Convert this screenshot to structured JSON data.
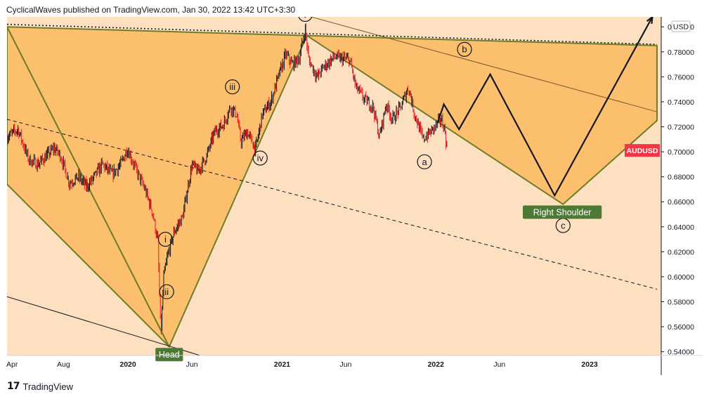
{
  "header": {
    "text": "CyclicalWaves published on TradingView.com, Jan 30, 2022 13:42 UTC+3:30"
  },
  "footer": {
    "logo": "tradingview-logo-icon",
    "brand": "TradingView"
  },
  "chart_data": {
    "type": "line",
    "title": "",
    "symbol": "AUDUSD",
    "currency": "USD",
    "colors": {
      "candle_up": "#131722",
      "candle_down": "#e51c23",
      "background_fill": "#fce0c0",
      "triangle_fill": "#fbbf6e",
      "triangle_edge": "#6f7d2a",
      "label_green": "#4c7a34",
      "symbol_badge": "#f23645"
    },
    "x_labels": [
      "Apr",
      "Aug",
      "2020",
      "Jun",
      "2021",
      "Jun",
      "2022",
      "Jun",
      "2023"
    ],
    "x_dates": [
      "2019-04-01",
      "2019-08-01",
      "2020-01-01",
      "2020-06-01",
      "2021-01-01",
      "2021-06-01",
      "2022-01-01",
      "2022-06-01",
      "2023-01-01"
    ],
    "y_ticks": [
      "0.80000",
      "0.78000",
      "0.76000",
      "0.74000",
      "0.72000",
      "0.70000",
      "0.68000",
      "0.66000",
      "0.64000",
      "0.62000",
      "0.60000",
      "0.58000",
      "0.56000",
      "0.54000"
    ],
    "ylim": [
      0.537,
      0.808
    ],
    "xlim": [
      "2019-03-20",
      "2023-06-20"
    ],
    "last_price_label": "AUDUSD",
    "price_series": [
      [
        "2019-03-20",
        0.712
      ],
      [
        "2019-04-15",
        0.718
      ],
      [
        "2019-05-10",
        0.694
      ],
      [
        "2019-06-01",
        0.69
      ],
      [
        "2019-06-20",
        0.696
      ],
      [
        "2019-07-10",
        0.703
      ],
      [
        "2019-07-25",
        0.697
      ],
      [
        "2019-08-15",
        0.675
      ],
      [
        "2019-09-05",
        0.68
      ],
      [
        "2019-09-25",
        0.672
      ],
      [
        "2019-10-15",
        0.681
      ],
      [
        "2019-11-01",
        0.69
      ],
      [
        "2019-11-25",
        0.682
      ],
      [
        "2019-12-15",
        0.69
      ],
      [
        "2019-12-31",
        0.702
      ],
      [
        "2020-01-20",
        0.686
      ],
      [
        "2020-02-10",
        0.67
      ],
      [
        "2020-02-28",
        0.652
      ],
      [
        "2020-03-12",
        0.628
      ],
      [
        "2020-03-19",
        0.552
      ],
      [
        "2020-03-26",
        0.6
      ],
      [
        "2020-04-05",
        0.618
      ],
      [
        "2020-04-20",
        0.636
      ],
      [
        "2020-05-10",
        0.648
      ],
      [
        "2020-06-01",
        0.69
      ],
      [
        "2020-06-15",
        0.684
      ],
      [
        "2020-07-05",
        0.696
      ],
      [
        "2020-07-25",
        0.716
      ],
      [
        "2020-08-15",
        0.722
      ],
      [
        "2020-08-31",
        0.736
      ],
      [
        "2020-09-15",
        0.73
      ],
      [
        "2020-09-25",
        0.708
      ],
      [
        "2020-10-10",
        0.716
      ],
      [
        "2020-10-30",
        0.702
      ],
      [
        "2020-11-15",
        0.73
      ],
      [
        "2020-12-05",
        0.74
      ],
      [
        "2020-12-25",
        0.762
      ],
      [
        "2021-01-10",
        0.778
      ],
      [
        "2021-01-25",
        0.77
      ],
      [
        "2021-02-10",
        0.774
      ],
      [
        "2021-02-25",
        0.798
      ],
      [
        "2021-03-05",
        0.774
      ],
      [
        "2021-03-25",
        0.76
      ],
      [
        "2021-04-10",
        0.768
      ],
      [
        "2021-05-05",
        0.776
      ],
      [
        "2021-05-25",
        0.774
      ],
      [
        "2021-06-10",
        0.774
      ],
      [
        "2021-06-25",
        0.752
      ],
      [
        "2021-07-15",
        0.742
      ],
      [
        "2021-08-05",
        0.736
      ],
      [
        "2021-08-20",
        0.712
      ],
      [
        "2021-09-05",
        0.738
      ],
      [
        "2021-09-20",
        0.726
      ],
      [
        "2021-10-10",
        0.736
      ],
      [
        "2021-10-28",
        0.752
      ],
      [
        "2021-11-10",
        0.732
      ],
      [
        "2021-12-01",
        0.71
      ],
      [
        "2021-12-20",
        0.716
      ],
      [
        "2022-01-13",
        0.726
      ],
      [
        "2022-01-22",
        0.718
      ],
      [
        "2022-01-28",
        0.7
      ]
    ],
    "projection_path": [
      [
        "2022-01-05",
        0.723
      ],
      [
        "2022-01-20",
        0.738
      ],
      [
        "2022-02-25",
        0.718
      ],
      [
        "2022-05-10",
        0.762
      ],
      [
        "2022-10-10",
        0.665
      ],
      [
        "2023-05-30",
        0.808
      ]
    ],
    "triangles": [
      {
        "name": "left-shoulder",
        "points": [
          [
            "2019-03-20",
            0.8
          ],
          [
            "2020-04-08",
            0.544
          ],
          [
            "2019-03-20",
            0.674
          ]
        ]
      },
      {
        "name": "head",
        "points": [
          [
            "2020-04-08",
            0.544
          ],
          [
            "2021-03-01",
            0.793
          ],
          [
            "2019-03-20",
            0.8
          ]
        ]
      },
      {
        "name": "right-shoulder",
        "points": [
          [
            "2021-03-01",
            0.793
          ],
          [
            "2022-10-30",
            0.658
          ],
          [
            "2023-06-10",
            0.725
          ],
          [
            "2023-06-10",
            0.785
          ]
        ]
      }
    ],
    "trendlines": [
      {
        "name": "upper-resistance",
        "style": "solid",
        "points": [
          [
            "2020-11-01",
            0.82
          ],
          [
            "2023-06-10",
            0.732
          ]
        ]
      },
      {
        "name": "lower-support",
        "style": "solid",
        "points": [
          [
            "2019-03-20",
            0.584
          ],
          [
            "2020-06-20",
            0.537
          ]
        ]
      },
      {
        "name": "dashed-channel",
        "style": "dashed",
        "points": [
          [
            "2019-03-20",
            0.726
          ],
          [
            "2023-06-10",
            0.59
          ]
        ]
      },
      {
        "name": "dotted-top",
        "style": "dotted",
        "points": [
          [
            "2019-03-20",
            0.802
          ],
          [
            "2023-06-10",
            0.786
          ]
        ]
      }
    ],
    "wave_labels": [
      {
        "text": "i",
        "x": "2020-03-30",
        "y": 0.63
      },
      {
        "text": "ii",
        "x": "2020-04-02",
        "y": 0.588
      },
      {
        "text": "iii",
        "x": "2020-09-05",
        "y": 0.752
      },
      {
        "text": "iv",
        "x": "2020-11-10",
        "y": 0.695
      },
      {
        "text": "v",
        "x": "2021-02-25",
        "y": 0.81
      },
      {
        "text": "a",
        "x": "2021-12-05",
        "y": 0.692
      },
      {
        "text": "b",
        "x": "2022-03-10",
        "y": 0.782
      },
      {
        "text": "c",
        "x": "2022-10-30",
        "y": 0.641
      }
    ],
    "annotations": [
      {
        "text": "Right Shoulder",
        "x": "2022-10-28",
        "y": 0.652
      },
      {
        "text": "Head",
        "x": "2020-04-08",
        "y": 0.538
      }
    ]
  }
}
